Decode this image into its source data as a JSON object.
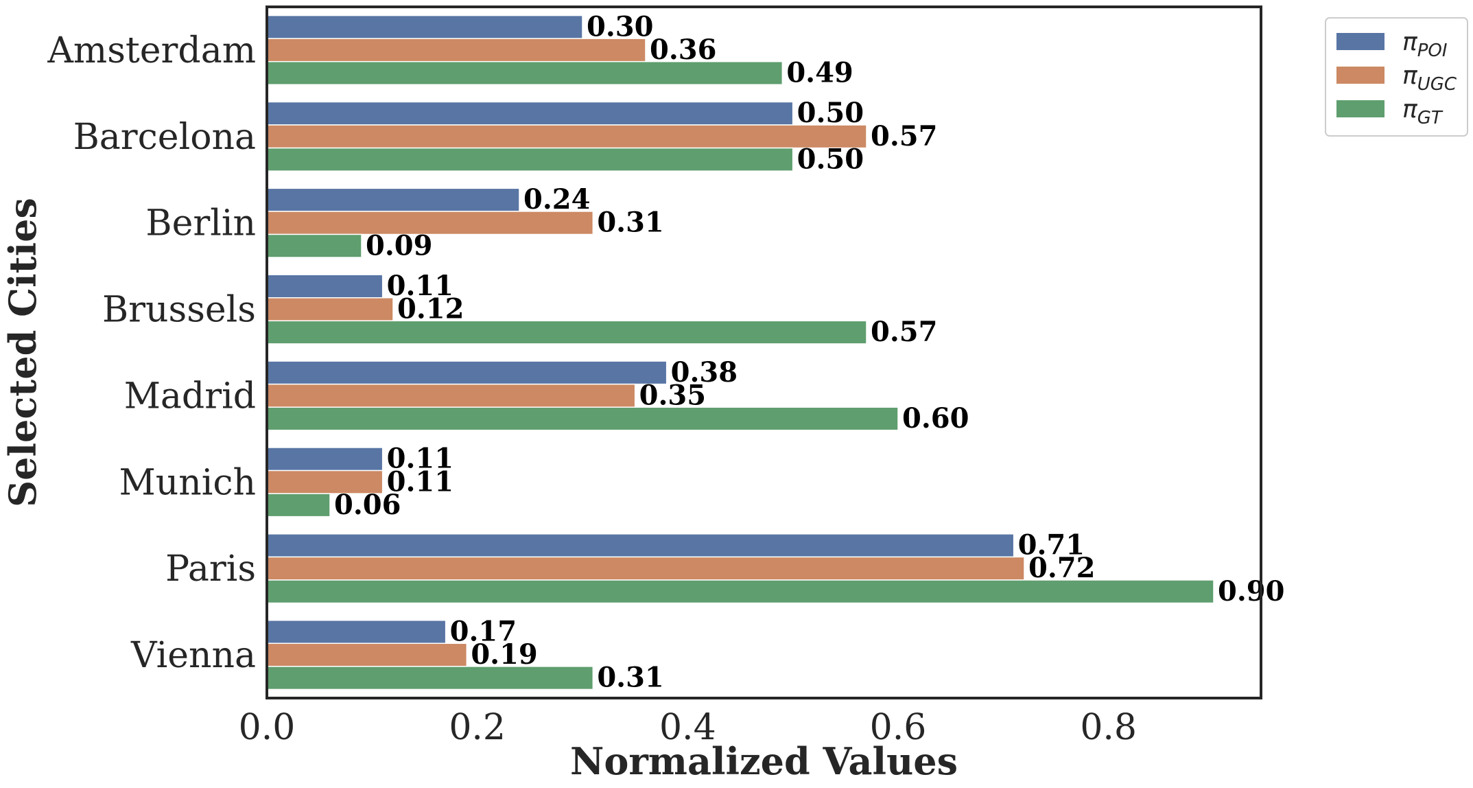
{
  "chart_data": {
    "type": "bar",
    "orientation": "horizontal",
    "categories": [
      "Amsterdam",
      "Barcelona",
      "Berlin",
      "Brussels",
      "Madrid",
      "Munich",
      "Paris",
      "Vienna"
    ],
    "series": [
      {
        "name": "π",
        "subscript": "POI",
        "color": "#5875a4",
        "values": [
          0.3,
          0.5,
          0.24,
          0.11,
          0.38,
          0.11,
          0.71,
          0.17
        ],
        "labels": [
          "0.30",
          "0.50",
          "0.24",
          "0.11",
          "0.38",
          "0.11",
          "0.71",
          "0.17"
        ]
      },
      {
        "name": "π",
        "subscript": "UGC",
        "color": "#cc8963",
        "values": [
          0.36,
          0.57,
          0.31,
          0.12,
          0.35,
          0.11,
          0.72,
          0.19
        ],
        "labels": [
          "0.36",
          "0.57",
          "0.31",
          "0.12",
          "0.35",
          "0.11",
          "0.72",
          "0.19"
        ]
      },
      {
        "name": "π",
        "subscript": "GT",
        "color": "#5f9e6e",
        "values": [
          0.49,
          0.5,
          0.09,
          0.57,
          0.6,
          0.06,
          0.9,
          0.31
        ],
        "labels": [
          "0.49",
          "0.50",
          "0.09",
          "0.57",
          "0.60",
          "0.06",
          "0.90",
          "0.31"
        ]
      }
    ],
    "xlabel": "Normalized Values",
    "ylabel": "Selected Cities",
    "xlim": [
      0,
      0.945
    ],
    "xticks": [
      0.0,
      0.2,
      0.4,
      0.6,
      0.8
    ],
    "xtick_labels": [
      "0.0",
      "0.2",
      "0.4",
      "0.6",
      "0.8"
    ],
    "grid": false,
    "legend_position": "outside-top-right"
  }
}
